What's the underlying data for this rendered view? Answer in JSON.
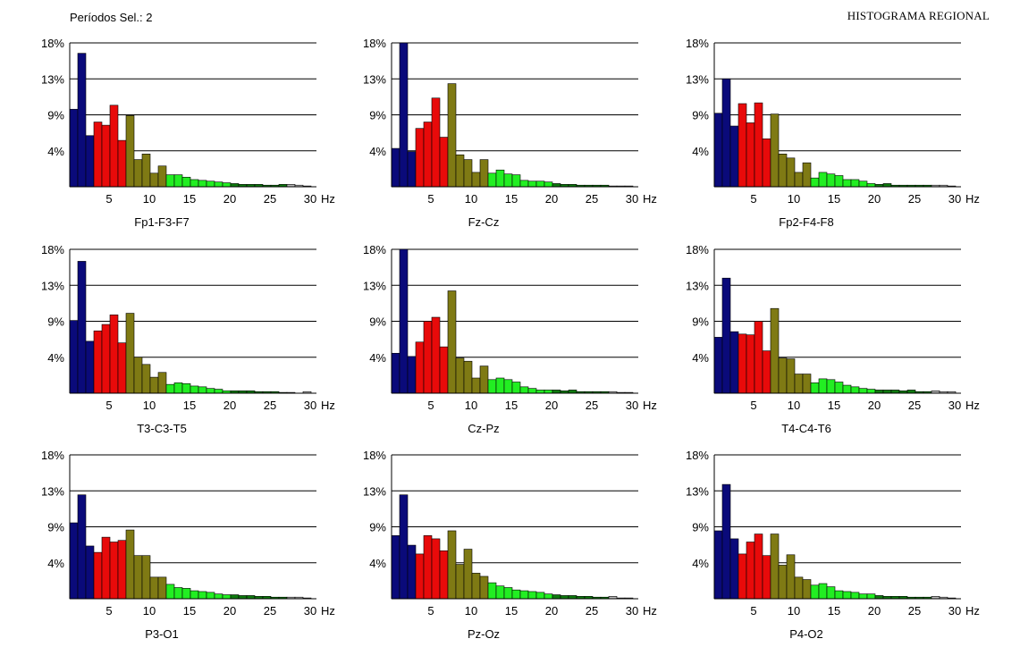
{
  "header": {
    "periods_label": "Períodos Sel.: 2",
    "title": "HISTOGRAMA REGIONAL"
  },
  "band_colors": {
    "delta": "#0a0a7a",
    "theta": "#e80a0a",
    "alpha": "#7f7a14",
    "beta1": "#22ee22",
    "beta2": "#0f7a0f",
    "high": "#b8b8b8"
  },
  "chart_data": [
    {
      "type": "bar",
      "title": "Fp1-F3-F7",
      "x_unit": "Hz",
      "y_ticks": [
        "18%",
        "13%",
        "9%",
        "4%"
      ],
      "ylim": [
        0,
        18
      ],
      "x_ticks": [
        5,
        10,
        15,
        20,
        25,
        30
      ],
      "grid": true,
      "values": [
        9.7,
        16.7,
        6.4,
        8.1,
        7.7,
        10.2,
        5.8,
        8.9,
        3.4,
        4.1,
        1.7,
        2.6,
        1.5,
        1.5,
        1.2,
        0.9,
        0.8,
        0.7,
        0.6,
        0.5,
        0.4,
        0.3,
        0.3,
        0.3,
        0.2,
        0.2,
        0.3,
        0.3,
        0.2,
        0.1
      ]
    },
    {
      "type": "bar",
      "title": "Fz-Cz",
      "x_unit": "Hz",
      "y_ticks": [
        "18%",
        "13%",
        "9%",
        "4%"
      ],
      "ylim": [
        0,
        18
      ],
      "x_ticks": [
        5,
        10,
        15,
        20,
        25,
        30
      ],
      "grid": true,
      "values": [
        4.8,
        18.0,
        4.4,
        7.3,
        8.1,
        11.1,
        6.2,
        12.9,
        4.0,
        3.4,
        1.8,
        3.4,
        1.7,
        2.1,
        1.6,
        1.5,
        0.8,
        0.7,
        0.7,
        0.6,
        0.4,
        0.3,
        0.3,
        0.2,
        0.2,
        0.2,
        0.2,
        0.1,
        0.1,
        0.1
      ]
    },
    {
      "type": "bar",
      "title": "Fp2-F4-F8",
      "x_unit": "Hz",
      "y_ticks": [
        "18%",
        "13%",
        "9%",
        "4%"
      ],
      "ylim": [
        0,
        18
      ],
      "x_ticks": [
        5,
        10,
        15,
        20,
        25,
        30
      ],
      "grid": true,
      "values": [
        9.2,
        13.5,
        7.6,
        10.4,
        8.0,
        10.5,
        6.0,
        9.1,
        4.1,
        3.6,
        1.8,
        3.0,
        1.1,
        1.8,
        1.6,
        1.4,
        0.9,
        0.9,
        0.7,
        0.4,
        0.3,
        0.4,
        0.2,
        0.2,
        0.2,
        0.2,
        0.2,
        0.2,
        0.2,
        0.1
      ]
    },
    {
      "type": "bar",
      "title": "T3-C3-T5",
      "x_unit": "Hz",
      "y_ticks": [
        "18%",
        "13%",
        "9%",
        "4%"
      ],
      "ylim": [
        0,
        18
      ],
      "x_ticks": [
        5,
        10,
        15,
        20,
        25,
        30
      ],
      "grid": true,
      "values": [
        9.1,
        16.5,
        6.5,
        7.8,
        8.6,
        9.8,
        6.3,
        10.0,
        4.5,
        3.6,
        2.0,
        2.6,
        1.1,
        1.3,
        1.2,
        0.9,
        0.8,
        0.6,
        0.5,
        0.3,
        0.3,
        0.3,
        0.3,
        0.2,
        0.2,
        0.2,
        0.1,
        0.1,
        0.0,
        0.2
      ]
    },
    {
      "type": "bar",
      "title": "Cz-Pz",
      "x_unit": "Hz",
      "y_ticks": [
        "18%",
        "13%",
        "9%",
        "4%"
      ],
      "ylim": [
        0,
        18
      ],
      "x_ticks": [
        5,
        10,
        15,
        20,
        25,
        30
      ],
      "grid": true,
      "values": [
        5.0,
        18.0,
        4.6,
        6.4,
        9.0,
        9.5,
        5.8,
        12.8,
        4.4,
        4.0,
        1.9,
        3.4,
        1.7,
        1.9,
        1.7,
        1.4,
        0.8,
        0.6,
        0.4,
        0.4,
        0.4,
        0.3,
        0.4,
        0.2,
        0.2,
        0.2,
        0.2,
        0.2,
        0.1,
        0.1
      ]
    },
    {
      "type": "bar",
      "title": "T4-C4-T6",
      "x_unit": "Hz",
      "y_ticks": [
        "18%",
        "13%",
        "9%",
        "4%"
      ],
      "ylim": [
        0,
        18
      ],
      "x_ticks": [
        5,
        10,
        15,
        20,
        25,
        30
      ],
      "grid": true,
      "values": [
        7.0,
        14.4,
        7.7,
        7.4,
        7.3,
        9.0,
        5.3,
        10.6,
        4.4,
        4.3,
        2.4,
        2.4,
        1.3,
        1.8,
        1.7,
        1.4,
        1.0,
        0.8,
        0.6,
        0.5,
        0.4,
        0.4,
        0.4,
        0.3,
        0.4,
        0.2,
        0.2,
        0.3,
        0.2,
        0.2
      ]
    },
    {
      "type": "bar",
      "title": "P3-O1",
      "x_unit": "Hz",
      "y_ticks": [
        "18%",
        "13%",
        "9%",
        "4%"
      ],
      "ylim": [
        0,
        18
      ],
      "x_ticks": [
        5,
        10,
        15,
        20,
        25,
        30
      ],
      "grid": true,
      "values": [
        9.5,
        13.0,
        6.6,
        5.8,
        7.7,
        7.1,
        7.3,
        8.6,
        5.4,
        5.4,
        2.7,
        2.7,
        1.8,
        1.4,
        1.3,
        1.0,
        0.9,
        0.8,
        0.6,
        0.5,
        0.5,
        0.4,
        0.4,
        0.3,
        0.3,
        0.2,
        0.2,
        0.2,
        0.2,
        0.1
      ]
    },
    {
      "type": "bar",
      "title": "Pz-Oz",
      "x_unit": "Hz",
      "y_ticks": [
        "18%",
        "13%",
        "9%",
        "4%"
      ],
      "ylim": [
        0,
        18
      ],
      "x_ticks": [
        5,
        10,
        15,
        20,
        25,
        30
      ],
      "grid": true,
      "values": [
        7.9,
        13.0,
        6.7,
        5.6,
        7.9,
        7.5,
        6.0,
        8.5,
        4.3,
        6.2,
        3.2,
        2.8,
        2.0,
        1.6,
        1.4,
        1.1,
        1.0,
        0.9,
        0.8,
        0.6,
        0.5,
        0.4,
        0.4,
        0.3,
        0.3,
        0.2,
        0.2,
        0.3,
        0.1,
        0.1
      ]
    },
    {
      "type": "bar",
      "title": "P4-O2",
      "x_unit": "Hz",
      "y_ticks": [
        "18%",
        "13%",
        "9%",
        "4%"
      ],
      "ylim": [
        0,
        18
      ],
      "x_ticks": [
        5,
        10,
        15,
        20,
        25,
        30
      ],
      "grid": true,
      "values": [
        8.5,
        14.3,
        7.5,
        5.6,
        7.1,
        8.1,
        5.4,
        8.1,
        4.2,
        5.5,
        2.7,
        2.4,
        1.7,
        1.9,
        1.5,
        1.0,
        0.9,
        0.8,
        0.6,
        0.6,
        0.4,
        0.3,
        0.3,
        0.3,
        0.2,
        0.2,
        0.2,
        0.3,
        0.2,
        0.1
      ]
    }
  ]
}
